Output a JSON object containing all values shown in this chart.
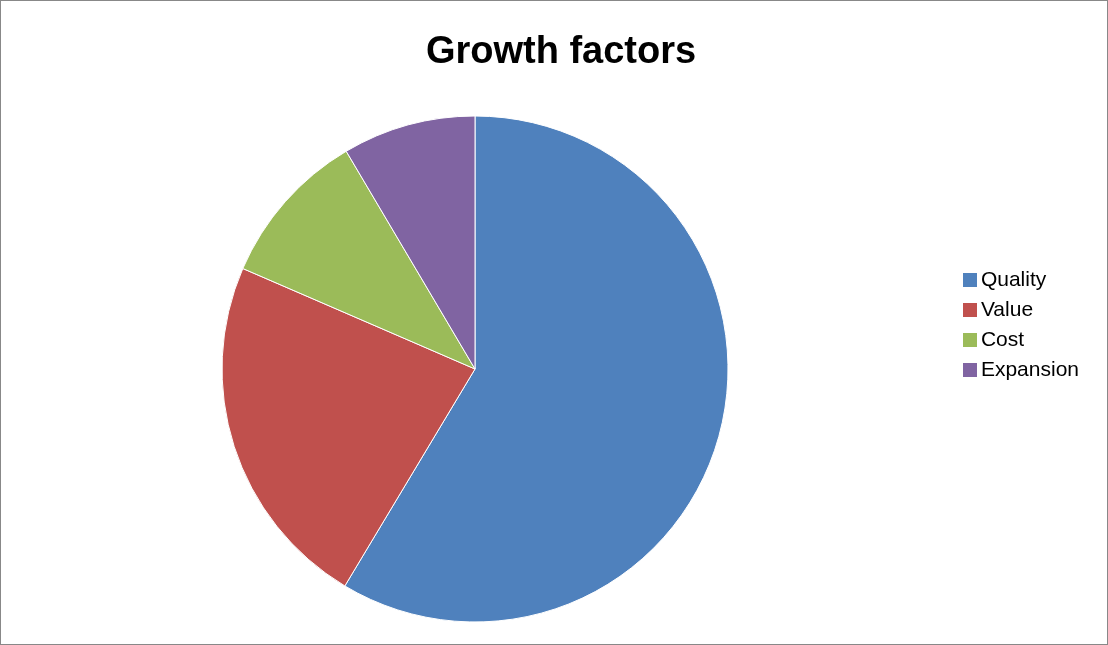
{
  "chart_data": {
    "type": "pie",
    "title": "Growth factors",
    "categories": [
      "Quality",
      "Value",
      "Cost",
      "Expansion"
    ],
    "values": [
      58.6,
      22.9,
      10.0,
      8.5
    ],
    "colors": [
      "#4f81bd",
      "#c0504d",
      "#9bbb59",
      "#8064a2"
    ],
    "legend": "right"
  }
}
